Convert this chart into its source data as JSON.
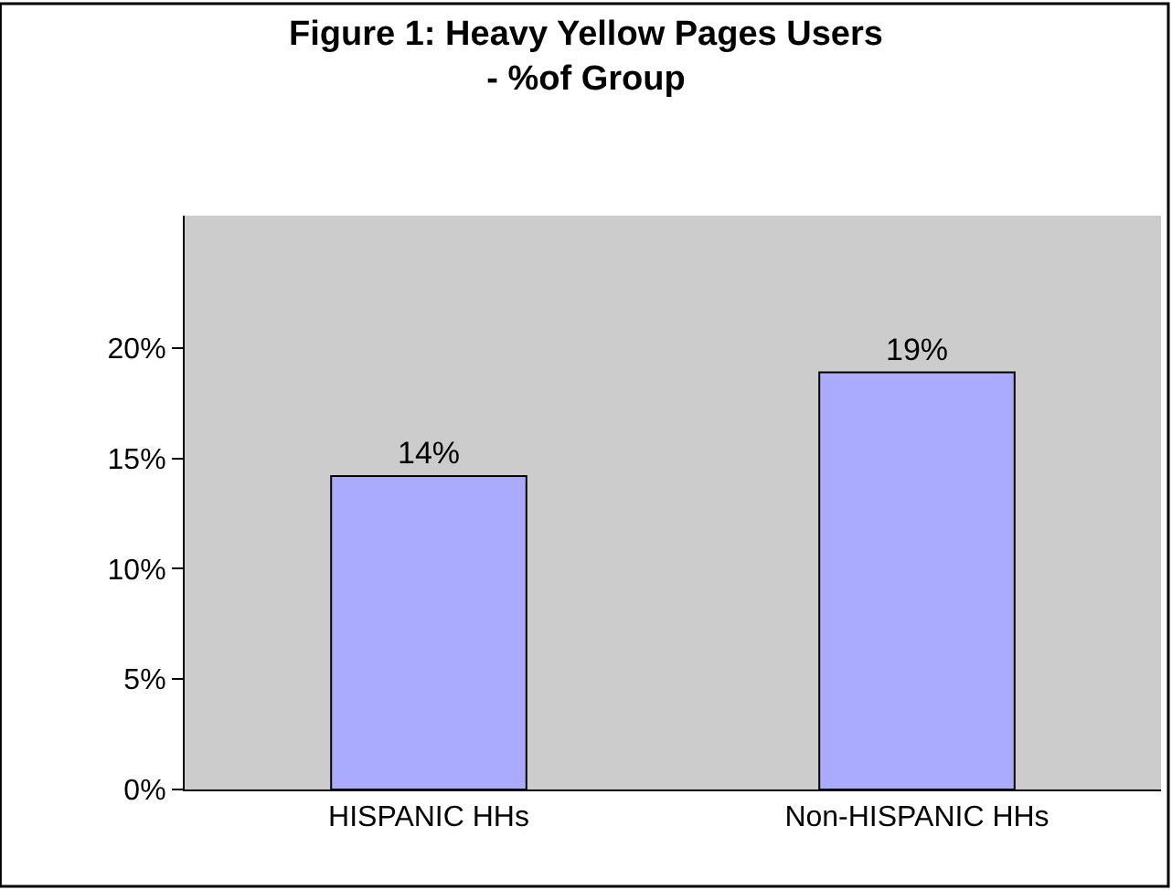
{
  "chart_data": {
    "type": "bar",
    "title": "Figure 1: Heavy Yellow Pages Users\n- %of Group",
    "categories": [
      "HISPANIC HHs",
      "Non-HISPANIC HHs"
    ],
    "values": [
      14.2,
      18.9
    ],
    "value_labels": [
      "14%",
      "19%"
    ],
    "color": "#aaaaff",
    "ylim": [
      0,
      26
    ],
    "yticks": [
      {
        "value": 0,
        "label": "0%"
      },
      {
        "value": 5,
        "label": "5%"
      },
      {
        "value": 10,
        "label": "10%"
      },
      {
        "value": 15,
        "label": "15%"
      },
      {
        "value": 20,
        "label": "20%"
      }
    ],
    "grid": false,
    "legend": false
  }
}
